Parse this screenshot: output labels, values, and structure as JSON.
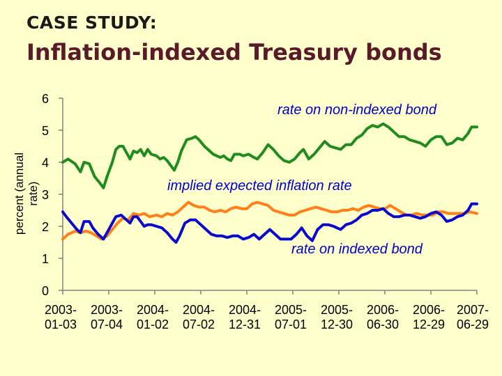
{
  "header": {
    "case_label": "CASE STUDY:",
    "title": "Inflation-indexed Treasury bonds"
  },
  "colors": {
    "background": "#ffffcc",
    "non_indexed": "#1e8c1e",
    "expected_inflation": "#ff7f1a",
    "indexed": "#0a0acc",
    "title": "#5a1a2a",
    "annotation": "#0000cc"
  },
  "chart_data": {
    "type": "line",
    "ylabel": "percent (annual rate)",
    "ylim": [
      0,
      6
    ],
    "yticks": [
      "0",
      "1",
      "2",
      "3",
      "4",
      "5",
      "6"
    ],
    "xlim": [
      "2003-01-03",
      "2007-06-29"
    ],
    "xticks": [
      {
        "line1": "2003-",
        "line2": "01-03",
        "date": "2003-01-03"
      },
      {
        "line1": "2003-",
        "line2": "07-04",
        "date": "2003-07-04"
      },
      {
        "line1": "2004-",
        "line2": "01-02",
        "date": "2004-01-02"
      },
      {
        "line1": "2004-",
        "line2": "07-02",
        "date": "2004-07-02"
      },
      {
        "line1": "2004-",
        "line2": "12-31",
        "date": "2004-12-31"
      },
      {
        "line1": "2005-",
        "line2": "07-01",
        "date": "2005-07-01"
      },
      {
        "line1": "2005-",
        "line2": "12-30",
        "date": "2005-12-30"
      },
      {
        "line1": "2006-",
        "line2": "06-30",
        "date": "2006-06-30"
      },
      {
        "line1": "2006-",
        "line2": "12-29",
        "date": "2006-12-29"
      },
      {
        "line1": "2007-",
        "line2": "06-29",
        "date": "2007-06-29"
      }
    ],
    "annotations": {
      "non_indexed": "rate on non-indexed bond",
      "expected_inflation": "implied expected inflation rate",
      "indexed": "rate on indexed bond"
    },
    "grid": false,
    "legend": "none",
    "series": [
      {
        "key": "non_indexed",
        "points": [
          [
            "2003-01-03",
            4.0
          ],
          [
            "2003-01-24",
            4.1
          ],
          [
            "2003-02-21",
            3.95
          ],
          [
            "2003-03-14",
            3.7
          ],
          [
            "2003-03-28",
            4.0
          ],
          [
            "2003-04-18",
            3.95
          ],
          [
            "2003-05-09",
            3.55
          ],
          [
            "2003-05-30",
            3.35
          ],
          [
            "2003-06-13",
            3.2
          ],
          [
            "2003-06-27",
            3.55
          ],
          [
            "2003-07-18",
            4.0
          ],
          [
            "2003-08-01",
            4.4
          ],
          [
            "2003-08-15",
            4.5
          ],
          [
            "2003-08-29",
            4.5
          ],
          [
            "2003-09-12",
            4.3
          ],
          [
            "2003-09-26",
            4.1
          ],
          [
            "2003-10-10",
            4.35
          ],
          [
            "2003-10-24",
            4.3
          ],
          [
            "2003-11-07",
            4.4
          ],
          [
            "2003-11-21",
            4.2
          ],
          [
            "2003-12-05",
            4.4
          ],
          [
            "2003-12-19",
            4.25
          ],
          [
            "2004-01-09",
            4.2
          ],
          [
            "2004-01-23",
            4.1
          ],
          [
            "2004-02-06",
            4.15
          ],
          [
            "2004-02-20",
            4.05
          ],
          [
            "2004-03-05",
            3.9
          ],
          [
            "2004-03-19",
            3.75
          ],
          [
            "2004-04-02",
            4.0
          ],
          [
            "2004-04-16",
            4.35
          ],
          [
            "2004-05-07",
            4.7
          ],
          [
            "2004-05-28",
            4.75
          ],
          [
            "2004-06-11",
            4.8
          ],
          [
            "2004-06-25",
            4.7
          ],
          [
            "2004-07-16",
            4.5
          ],
          [
            "2004-08-06",
            4.35
          ],
          [
            "2004-08-20",
            4.25
          ],
          [
            "2004-09-03",
            4.2
          ],
          [
            "2004-09-17",
            4.15
          ],
          [
            "2004-10-01",
            4.2
          ],
          [
            "2004-10-15",
            4.1
          ],
          [
            "2004-10-29",
            4.05
          ],
          [
            "2004-11-12",
            4.25
          ],
          [
            "2004-12-03",
            4.25
          ],
          [
            "2004-12-17",
            4.2
          ],
          [
            "2005-01-07",
            4.25
          ],
          [
            "2005-01-28",
            4.15
          ],
          [
            "2005-02-11",
            4.1
          ],
          [
            "2005-03-04",
            4.3
          ],
          [
            "2005-03-25",
            4.55
          ],
          [
            "2005-04-15",
            4.4
          ],
          [
            "2005-05-06",
            4.2
          ],
          [
            "2005-05-27",
            4.05
          ],
          [
            "2005-06-17",
            4.0
          ],
          [
            "2005-07-08",
            4.1
          ],
          [
            "2005-07-29",
            4.3
          ],
          [
            "2005-08-12",
            4.4
          ],
          [
            "2005-09-02",
            4.1
          ],
          [
            "2005-09-23",
            4.25
          ],
          [
            "2005-10-14",
            4.45
          ],
          [
            "2005-11-04",
            4.65
          ],
          [
            "2005-11-25",
            4.5
          ],
          [
            "2005-12-16",
            4.45
          ],
          [
            "2006-01-06",
            4.4
          ],
          [
            "2006-01-27",
            4.55
          ],
          [
            "2006-02-17",
            4.55
          ],
          [
            "2006-03-10",
            4.75
          ],
          [
            "2006-03-31",
            4.85
          ],
          [
            "2006-04-21",
            5.05
          ],
          [
            "2006-05-12",
            5.15
          ],
          [
            "2006-06-02",
            5.1
          ],
          [
            "2006-06-23",
            5.2
          ],
          [
            "2006-07-14",
            5.1
          ],
          [
            "2006-08-04",
            4.95
          ],
          [
            "2006-08-25",
            4.8
          ],
          [
            "2006-09-15",
            4.8
          ],
          [
            "2006-10-06",
            4.7
          ],
          [
            "2006-10-27",
            4.65
          ],
          [
            "2006-11-17",
            4.6
          ],
          [
            "2006-12-08",
            4.5
          ],
          [
            "2006-12-29",
            4.7
          ],
          [
            "2007-01-19",
            4.8
          ],
          [
            "2007-02-09",
            4.8
          ],
          [
            "2007-03-02",
            4.55
          ],
          [
            "2007-03-23",
            4.6
          ],
          [
            "2007-04-13",
            4.75
          ],
          [
            "2007-05-04",
            4.7
          ],
          [
            "2007-05-25",
            4.9
          ],
          [
            "2007-06-08",
            5.1
          ],
          [
            "2007-06-29",
            5.1
          ]
        ]
      },
      {
        "key": "expected_inflation",
        "points": [
          [
            "2003-01-03",
            1.6
          ],
          [
            "2003-01-24",
            1.75
          ],
          [
            "2003-02-21",
            1.85
          ],
          [
            "2003-03-14",
            1.8
          ],
          [
            "2003-04-04",
            1.85
          ],
          [
            "2003-04-25",
            1.8
          ],
          [
            "2003-05-16",
            1.7
          ],
          [
            "2003-06-06",
            1.6
          ],
          [
            "2003-06-27",
            1.7
          ],
          [
            "2003-07-18",
            1.9
          ],
          [
            "2003-08-08",
            2.1
          ],
          [
            "2003-08-29",
            2.25
          ],
          [
            "2003-09-19",
            2.2
          ],
          [
            "2003-10-10",
            2.4
          ],
          [
            "2003-10-31",
            2.35
          ],
          [
            "2003-11-21",
            2.4
          ],
          [
            "2003-12-12",
            2.3
          ],
          [
            "2004-01-09",
            2.35
          ],
          [
            "2004-01-30",
            2.3
          ],
          [
            "2004-02-20",
            2.4
          ],
          [
            "2004-03-12",
            2.35
          ],
          [
            "2004-04-02",
            2.45
          ],
          [
            "2004-04-23",
            2.6
          ],
          [
            "2004-05-14",
            2.75
          ],
          [
            "2004-06-04",
            2.65
          ],
          [
            "2004-06-25",
            2.6
          ],
          [
            "2004-07-16",
            2.6
          ],
          [
            "2004-08-06",
            2.5
          ],
          [
            "2004-08-27",
            2.45
          ],
          [
            "2004-09-17",
            2.5
          ],
          [
            "2004-10-08",
            2.45
          ],
          [
            "2004-10-29",
            2.55
          ],
          [
            "2004-11-19",
            2.6
          ],
          [
            "2004-12-10",
            2.55
          ],
          [
            "2004-12-31",
            2.55
          ],
          [
            "2005-01-21",
            2.7
          ],
          [
            "2005-02-11",
            2.75
          ],
          [
            "2005-03-04",
            2.7
          ],
          [
            "2005-03-25",
            2.65
          ],
          [
            "2005-04-15",
            2.5
          ],
          [
            "2005-05-06",
            2.45
          ],
          [
            "2005-05-27",
            2.4
          ],
          [
            "2005-06-17",
            2.35
          ],
          [
            "2005-07-08",
            2.35
          ],
          [
            "2005-07-29",
            2.45
          ],
          [
            "2005-08-19",
            2.5
          ],
          [
            "2005-09-09",
            2.55
          ],
          [
            "2005-09-30",
            2.6
          ],
          [
            "2005-10-21",
            2.55
          ],
          [
            "2005-11-11",
            2.5
          ],
          [
            "2005-12-02",
            2.45
          ],
          [
            "2005-12-23",
            2.45
          ],
          [
            "2006-01-13",
            2.5
          ],
          [
            "2006-02-03",
            2.5
          ],
          [
            "2006-02-24",
            2.55
          ],
          [
            "2006-03-17",
            2.5
          ],
          [
            "2006-04-07",
            2.6
          ],
          [
            "2006-04-28",
            2.65
          ],
          [
            "2006-05-19",
            2.6
          ],
          [
            "2006-06-09",
            2.55
          ],
          [
            "2006-06-30",
            2.55
          ],
          [
            "2006-07-21",
            2.65
          ],
          [
            "2006-08-11",
            2.55
          ],
          [
            "2006-09-01",
            2.45
          ],
          [
            "2006-09-22",
            2.35
          ],
          [
            "2006-10-13",
            2.35
          ],
          [
            "2006-11-03",
            2.4
          ],
          [
            "2006-11-24",
            2.35
          ],
          [
            "2006-12-15",
            2.35
          ],
          [
            "2007-01-05",
            2.35
          ],
          [
            "2007-01-26",
            2.45
          ],
          [
            "2007-02-16",
            2.45
          ],
          [
            "2007-03-09",
            2.4
          ],
          [
            "2007-03-30",
            2.4
          ],
          [
            "2007-04-20",
            2.4
          ],
          [
            "2007-05-11",
            2.4
          ],
          [
            "2007-06-01",
            2.45
          ],
          [
            "2007-06-29",
            2.4
          ]
        ]
      },
      {
        "key": "indexed",
        "points": [
          [
            "2003-01-03",
            2.45
          ],
          [
            "2003-01-17",
            2.3
          ],
          [
            "2003-02-07",
            2.1
          ],
          [
            "2003-02-28",
            1.9
          ],
          [
            "2003-03-14",
            1.8
          ],
          [
            "2003-03-28",
            2.15
          ],
          [
            "2003-04-18",
            2.15
          ],
          [
            "2003-05-02",
            1.95
          ],
          [
            "2003-05-23",
            1.75
          ],
          [
            "2003-06-13",
            1.6
          ],
          [
            "2003-06-27",
            1.8
          ],
          [
            "2003-07-18",
            2.1
          ],
          [
            "2003-08-01",
            2.3
          ],
          [
            "2003-08-22",
            2.35
          ],
          [
            "2003-09-12",
            2.2
          ],
          [
            "2003-09-26",
            2.1
          ],
          [
            "2003-10-10",
            2.3
          ],
          [
            "2003-10-24",
            2.3
          ],
          [
            "2003-11-07",
            2.15
          ],
          [
            "2003-11-21",
            2.0
          ],
          [
            "2003-12-05",
            2.05
          ],
          [
            "2003-12-19",
            2.05
          ],
          [
            "2004-01-09",
            2.0
          ],
          [
            "2004-01-30",
            1.95
          ],
          [
            "2004-02-20",
            1.8
          ],
          [
            "2004-03-12",
            1.6
          ],
          [
            "2004-03-26",
            1.5
          ],
          [
            "2004-04-09",
            1.7
          ],
          [
            "2004-04-30",
            2.1
          ],
          [
            "2004-05-21",
            2.2
          ],
          [
            "2004-06-11",
            2.2
          ],
          [
            "2004-07-02",
            2.05
          ],
          [
            "2004-07-23",
            1.9
          ],
          [
            "2004-08-13",
            1.75
          ],
          [
            "2004-09-03",
            1.7
          ],
          [
            "2004-09-24",
            1.7
          ],
          [
            "2004-10-15",
            1.65
          ],
          [
            "2004-11-05",
            1.7
          ],
          [
            "2004-11-26",
            1.7
          ],
          [
            "2004-12-17",
            1.6
          ],
          [
            "2005-01-07",
            1.65
          ],
          [
            "2005-01-28",
            1.75
          ],
          [
            "2005-02-18",
            1.6
          ],
          [
            "2005-03-11",
            1.75
          ],
          [
            "2005-04-01",
            1.9
          ],
          [
            "2005-04-22",
            1.75
          ],
          [
            "2005-05-13",
            1.6
          ],
          [
            "2005-06-03",
            1.6
          ],
          [
            "2005-06-24",
            1.6
          ],
          [
            "2005-07-15",
            1.75
          ],
          [
            "2005-08-05",
            1.95
          ],
          [
            "2005-08-26",
            1.7
          ],
          [
            "2005-09-16",
            1.55
          ],
          [
            "2005-10-07",
            1.9
          ],
          [
            "2005-10-28",
            2.05
          ],
          [
            "2005-11-18",
            2.05
          ],
          [
            "2005-12-09",
            2.0
          ],
          [
            "2006-01-06",
            1.9
          ],
          [
            "2006-01-27",
            2.05
          ],
          [
            "2006-02-17",
            2.1
          ],
          [
            "2006-03-10",
            2.2
          ],
          [
            "2006-03-31",
            2.35
          ],
          [
            "2006-04-21",
            2.4
          ],
          [
            "2006-05-12",
            2.5
          ],
          [
            "2006-06-02",
            2.5
          ],
          [
            "2006-06-23",
            2.55
          ],
          [
            "2006-07-14",
            2.4
          ],
          [
            "2006-08-04",
            2.3
          ],
          [
            "2006-08-25",
            2.3
          ],
          [
            "2006-09-15",
            2.35
          ],
          [
            "2006-10-06",
            2.35
          ],
          [
            "2006-10-27",
            2.3
          ],
          [
            "2006-11-17",
            2.25
          ],
          [
            "2006-12-08",
            2.3
          ],
          [
            "2006-12-29",
            2.4
          ],
          [
            "2007-01-19",
            2.45
          ],
          [
            "2007-02-09",
            2.35
          ],
          [
            "2007-03-02",
            2.15
          ],
          [
            "2007-03-23",
            2.2
          ],
          [
            "2007-04-13",
            2.3
          ],
          [
            "2007-05-04",
            2.35
          ],
          [
            "2007-05-25",
            2.5
          ],
          [
            "2007-06-08",
            2.7
          ],
          [
            "2007-06-29",
            2.7
          ]
        ]
      }
    ]
  }
}
